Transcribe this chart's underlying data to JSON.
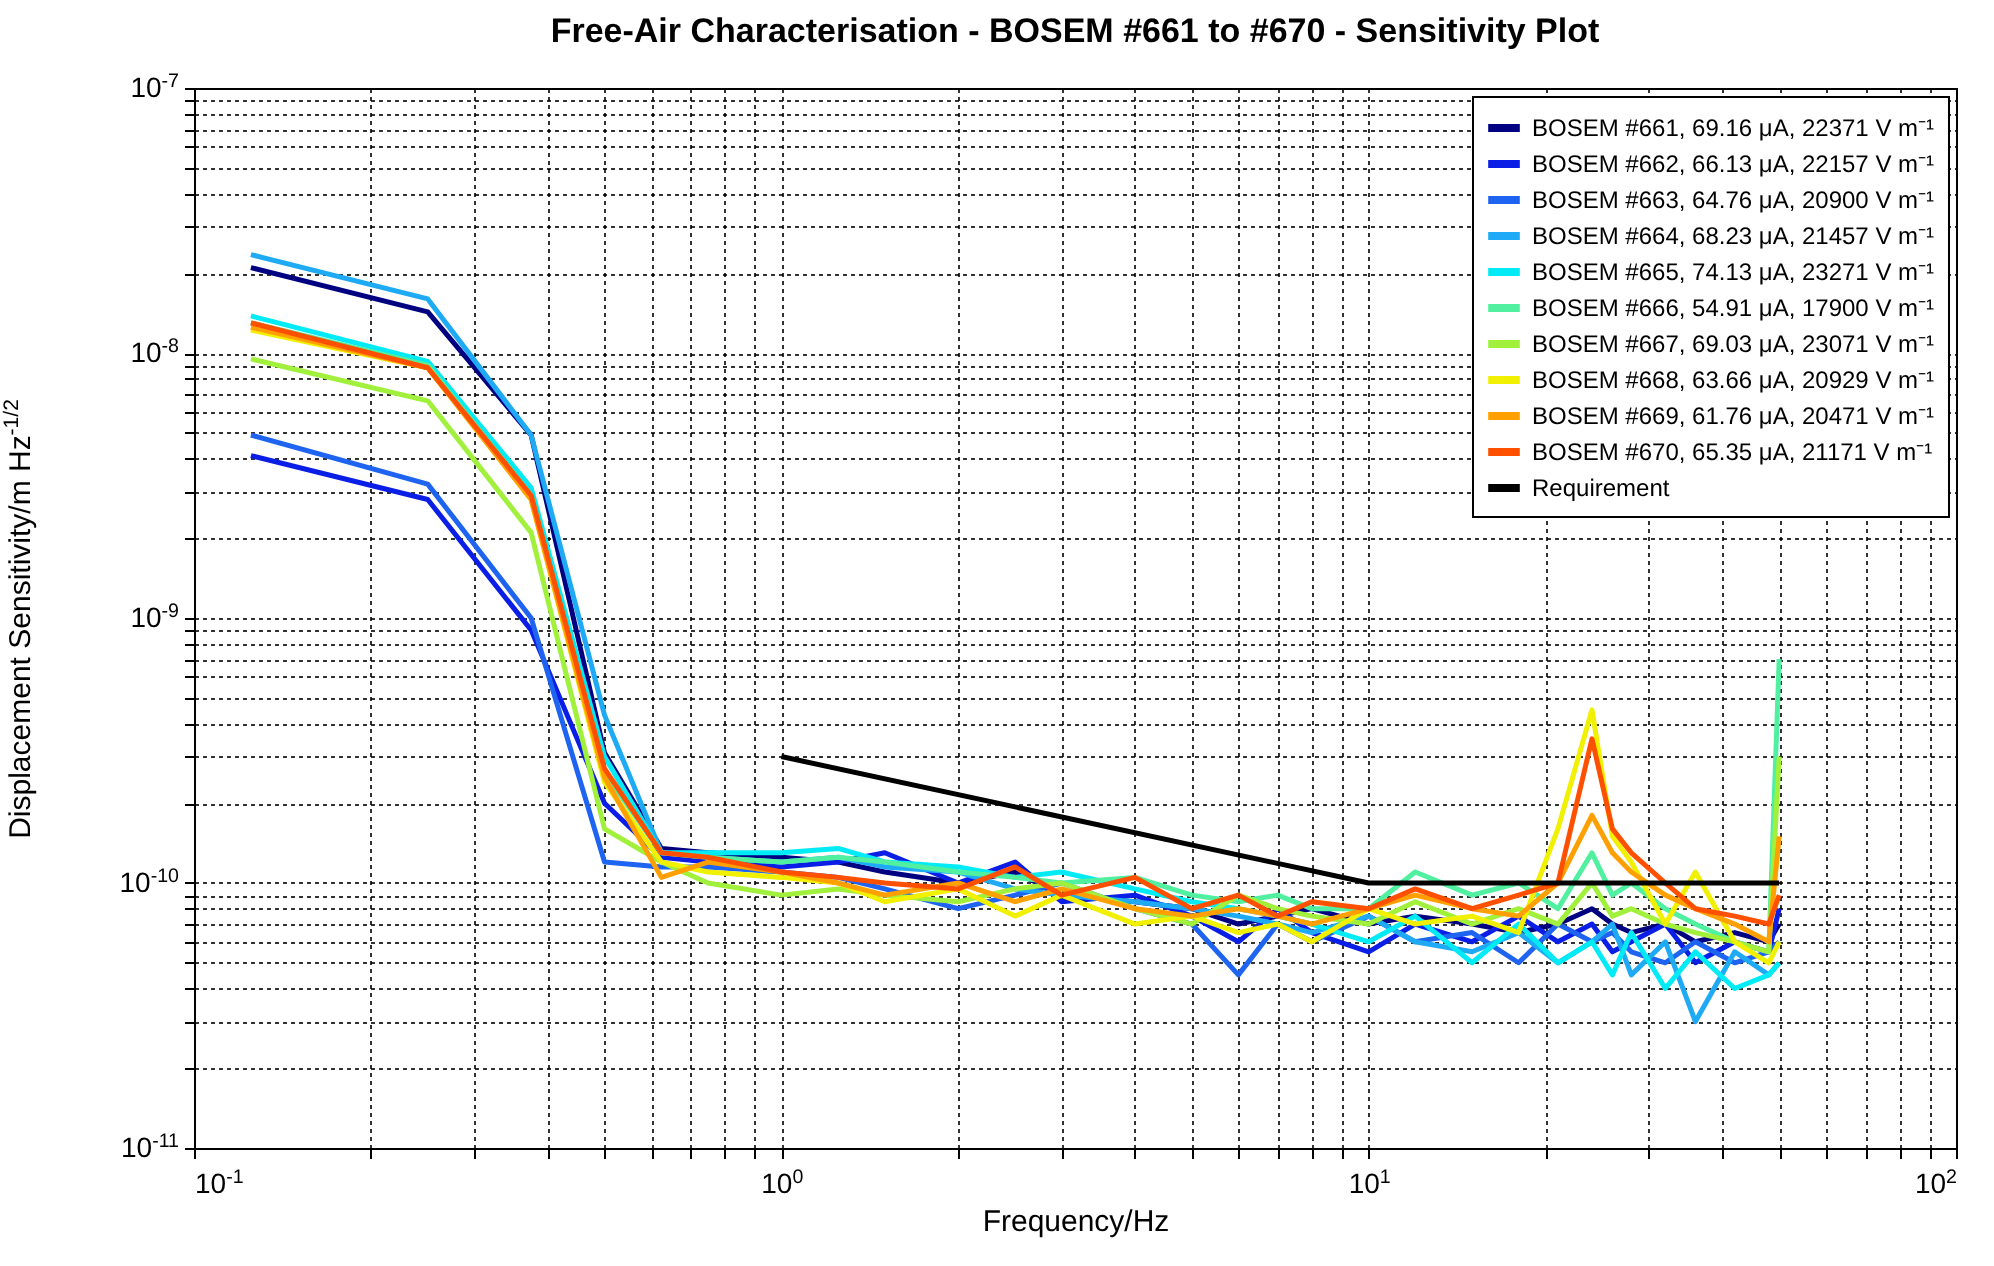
{
  "chart_data": {
    "type": "line",
    "title": "Free-Air Characterisation - BOSEM #661 to #670 - Sensitivity Plot",
    "xlabel": "Frequency/Hz",
    "ylabel": "Displacement Sensitivity/m Hz$^{-1/2}$",
    "log": "xy",
    "grid": true,
    "legend": "top right",
    "xlim": [
      0.1,
      100
    ],
    "ylim": [
      1e-11,
      1e-07
    ],
    "xticks": [
      {
        "value": 0.1,
        "label": "10$^{-1}$"
      },
      {
        "value": 0.2,
        "label": null
      },
      {
        "value": 0.3,
        "label": null
      },
      {
        "value": 0.4,
        "label": null
      },
      {
        "value": 0.5,
        "label": null
      },
      {
        "value": 0.6,
        "label": null
      },
      {
        "value": 0.7,
        "label": null
      },
      {
        "value": 0.8,
        "label": null
      },
      {
        "value": 0.9,
        "label": null
      },
      {
        "value": 1,
        "label": "10$^{0}$"
      },
      {
        "value": 2,
        "label": null
      },
      {
        "value": 3,
        "label": null
      },
      {
        "value": 4,
        "label": null
      },
      {
        "value": 5,
        "label": null
      },
      {
        "value": 6,
        "label": null
      },
      {
        "value": 7,
        "label": null
      },
      {
        "value": 8,
        "label": null
      },
      {
        "value": 9,
        "label": null
      },
      {
        "value": 10,
        "label": "10$^{1}$"
      },
      {
        "value": 20,
        "label": null
      },
      {
        "value": 30,
        "label": null
      },
      {
        "value": 40,
        "label": null
      },
      {
        "value": 50,
        "label": null
      },
      {
        "value": 60,
        "label": null
      },
      {
        "value": 70,
        "label": null
      },
      {
        "value": 80,
        "label": null
      },
      {
        "value": 90,
        "label": null
      },
      {
        "value": 100,
        "label": "10$^{2}$"
      }
    ],
    "yticks": [
      {
        "value": 1e-11,
        "label": "10$^{-11}$"
      },
      {
        "value": 2e-11,
        "label": null
      },
      {
        "value": 3e-11,
        "label": null
      },
      {
        "value": 4e-11,
        "label": null
      },
      {
        "value": 5e-11,
        "label": null
      },
      {
        "value": 6e-11,
        "label": null
      },
      {
        "value": 7e-11,
        "label": null
      },
      {
        "value": 8e-11,
        "label": null
      },
      {
        "value": 9e-11,
        "label": null
      },
      {
        "value": 1e-10,
        "label": "10$^{-10}$"
      },
      {
        "value": 2e-10,
        "label": null
      },
      {
        "value": 3e-10,
        "label": null
      },
      {
        "value": 4e-10,
        "label": null
      },
      {
        "value": 5e-10,
        "label": null
      },
      {
        "value": 6e-10,
        "label": null
      },
      {
        "value": 7e-10,
        "label": null
      },
      {
        "value": 8e-10,
        "label": null
      },
      {
        "value": 9e-10,
        "label": null
      },
      {
        "value": 1e-09,
        "label": "10$^{-9}$"
      },
      {
        "value": 2e-09,
        "label": null
      },
      {
        "value": 3e-09,
        "label": null
      },
      {
        "value": 4e-09,
        "label": null
      },
      {
        "value": 5e-09,
        "label": null
      },
      {
        "value": 6e-09,
        "label": null
      },
      {
        "value": 7e-09,
        "label": null
      },
      {
        "value": 8e-09,
        "label": null
      },
      {
        "value": 9e-09,
        "label": null
      },
      {
        "value": 1e-08,
        "label": "10$^{-8}$"
      },
      {
        "value": 2e-08,
        "label": null
      },
      {
        "value": 3e-08,
        "label": null
      },
      {
        "value": 4e-08,
        "label": null
      },
      {
        "value": 5e-08,
        "label": null
      },
      {
        "value": 6e-08,
        "label": null
      },
      {
        "value": 7e-08,
        "label": null
      },
      {
        "value": 8e-08,
        "label": null
      },
      {
        "value": 9e-08,
        "label": null
      },
      {
        "value": 1e-07,
        "label": "10$^{-7}$"
      }
    ],
    "x": [
      0.125,
      0.25,
      0.375,
      0.5,
      0.625,
      0.75,
      1,
      1.25,
      1.5,
      2,
      2.5,
      3,
      4,
      5,
      6,
      7,
      8,
      10,
      12,
      15,
      18,
      21,
      24,
      26,
      28,
      32,
      36,
      42,
      48,
      50
    ],
    "series": [
      {
        "name": "BOSEM #661, 69.16 μA, 22371 V m⁻¹",
        "color": "#000080",
        "values": [
          2.1e-08,
          1.43e-08,
          4.9e-09,
          3.1e-10,
          1.35e-10,
          1.3e-10,
          1.25e-10,
          1.2e-10,
          1.1e-10,
          1e-10,
          1.1e-10,
          9e-11,
          8.5e-11,
          8e-11,
          7e-11,
          7.5e-11,
          8e-11,
          7e-11,
          7.5e-11,
          7e-11,
          6.5e-11,
          7e-11,
          8e-11,
          7e-11,
          6.5e-11,
          7e-11,
          6e-11,
          6.5e-11,
          6e-11,
          7e-11
        ]
      },
      {
        "name": "BOSEM #662, 66.13 μA, 22157 V m⁻¹",
        "color": "#0a1ee6",
        "values": [
          4.1e-09,
          2.8e-09,
          9e-10,
          2e-10,
          1.25e-10,
          1.2e-10,
          1.15e-10,
          1.2e-10,
          1.3e-10,
          1e-10,
          1.2e-10,
          8.5e-11,
          9e-11,
          7.5e-11,
          6e-11,
          8e-11,
          6.5e-11,
          5.5e-11,
          7e-11,
          6e-11,
          7.5e-11,
          6e-11,
          7e-11,
          5.5e-11,
          6e-11,
          7e-11,
          5e-11,
          6e-11,
          5.5e-11,
          8e-11
        ]
      },
      {
        "name": "BOSEM #663, 64.76 μA, 20900 V m⁻¹",
        "color": "#1e64f0",
        "values": [
          4.9e-09,
          3.2e-09,
          1e-09,
          1.2e-10,
          1.15e-10,
          1.15e-10,
          1.1e-10,
          1.05e-10,
          9.5e-11,
          8e-11,
          9e-11,
          1e-10,
          8e-11,
          7e-11,
          4.5e-11,
          7e-11,
          6e-11,
          7.5e-11,
          6e-11,
          6.5e-11,
          5e-11,
          7e-11,
          6e-11,
          6.5e-11,
          5.5e-11,
          5e-11,
          6e-11,
          5e-11,
          5.5e-11,
          6e-11
        ]
      },
      {
        "name": "BOSEM #664, 68.23 μA, 21457 V m⁻¹",
        "color": "#1eaaf5",
        "values": [
          2.35e-08,
          1.6e-08,
          4.9e-09,
          4.3e-10,
          1.3e-10,
          1.25e-10,
          1.2e-10,
          1.25e-10,
          1.15e-10,
          1.1e-10,
          9.5e-11,
          9e-11,
          8.5e-11,
          8e-11,
          7.5e-11,
          7e-11,
          6.5e-11,
          7.5e-11,
          6e-11,
          5.5e-11,
          6.5e-11,
          5e-11,
          6e-11,
          7e-11,
          4.5e-11,
          6e-11,
          3e-11,
          5.5e-11,
          4.5e-11,
          5e-11
        ]
      },
      {
        "name": "BOSEM #665, 74.13 μA, 23271 V m⁻¹",
        "color": "#00ebf5",
        "values": [
          1.38e-08,
          9.3e-09,
          3.1e-09,
          3e-10,
          1.3e-10,
          1.3e-10,
          1.3e-10,
          1.35e-10,
          1.2e-10,
          1.15e-10,
          1.05e-10,
          1.1e-10,
          9.5e-11,
          8.5e-11,
          8e-11,
          7.5e-11,
          7e-11,
          6e-11,
          7.5e-11,
          5e-11,
          7e-11,
          5e-11,
          6e-11,
          4.5e-11,
          6.5e-11,
          4e-11,
          5.5e-11,
          4e-11,
          4.5e-11,
          5e-11
        ]
      },
      {
        "name": "BOSEM #666, 54.91 μA, 17900 V m⁻¹",
        "color": "#50f0a0",
        "values": [
          1.3e-08,
          9e-09,
          2.9e-09,
          2.6e-10,
          1.3e-10,
          1.25e-10,
          1.2e-10,
          1.25e-10,
          1.2e-10,
          1.1e-10,
          1.05e-10,
          1e-10,
          1.05e-10,
          9e-11,
          8.5e-11,
          9e-11,
          8e-11,
          8e-11,
          1.1e-10,
          9e-11,
          1e-10,
          8e-11,
          1.3e-10,
          9e-11,
          1e-10,
          8e-11,
          7e-11,
          6e-11,
          5.5e-11,
          7e-10
        ]
      },
      {
        "name": "BOSEM #667, 69.03 μA, 23071 V m⁻¹",
        "color": "#a0f03c",
        "values": [
          9.5e-09,
          6.6e-09,
          2.1e-09,
          1.6e-10,
          1.2e-10,
          1e-10,
          9e-11,
          9.5e-11,
          9e-11,
          8.5e-11,
          9.5e-11,
          1e-10,
          8e-11,
          7e-11,
          9e-11,
          8e-11,
          7.5e-11,
          7e-11,
          8.5e-11,
          7e-11,
          8e-11,
          7e-11,
          1e-10,
          7.5e-11,
          8e-11,
          7e-11,
          6.5e-11,
          6e-11,
          5.5e-11,
          3e-10
        ]
      },
      {
        "name": "BOSEM #668, 63.66 μA, 20929 V m⁻¹",
        "color": "#f0f000",
        "values": [
          1.22e-08,
          8.8e-09,
          2.8e-09,
          2.4e-10,
          1.2e-10,
          1.1e-10,
          1.05e-10,
          1e-10,
          8.5e-11,
          9.5e-11,
          7.5e-11,
          9e-11,
          7e-11,
          7.5e-11,
          6.5e-11,
          7e-11,
          6e-11,
          8e-11,
          7e-11,
          7.5e-11,
          6.5e-11,
          1.6e-10,
          4.5e-10,
          1.5e-10,
          1.2e-10,
          7e-11,
          1.1e-10,
          6e-11,
          5e-11,
          6e-11
        ]
      },
      {
        "name": "BOSEM #669, 61.76 μA, 20471 V m⁻¹",
        "color": "#ffa000",
        "values": [
          1.25e-08,
          8.8e-09,
          2.8e-09,
          2.5e-10,
          1.05e-10,
          1.2e-10,
          1.1e-10,
          1e-10,
          9e-11,
          1e-10,
          8.5e-11,
          9.5e-11,
          8e-11,
          7.5e-11,
          8e-11,
          7.5e-11,
          7e-11,
          8e-11,
          9e-11,
          8e-11,
          7.5e-11,
          1e-10,
          1.8e-10,
          1.3e-10,
          1.1e-10,
          9e-11,
          8e-11,
          7e-11,
          6e-11,
          1.5e-10
        ]
      },
      {
        "name": "BOSEM #670, 65.35 μA, 21171 V m⁻¹",
        "color": "#ff5000",
        "values": [
          1.3e-08,
          8.8e-09,
          2.9e-09,
          2.7e-10,
          1.3e-10,
          1.25e-10,
          1.1e-10,
          1.05e-10,
          1e-10,
          9.5e-11,
          1.15e-10,
          9e-11,
          1.05e-10,
          8e-11,
          9e-11,
          7.5e-11,
          8.5e-11,
          8e-11,
          9.5e-11,
          8e-11,
          9e-11,
          1e-10,
          3.5e-10,
          1.6e-10,
          1.3e-10,
          1e-10,
          8e-11,
          7.5e-11,
          7e-11,
          9e-11
        ]
      },
      {
        "name": "Requirement",
        "color": "#000000",
        "x": [
          1,
          10,
          50
        ],
        "values": [
          3e-10,
          1e-10,
          1e-10
        ]
      }
    ]
  }
}
